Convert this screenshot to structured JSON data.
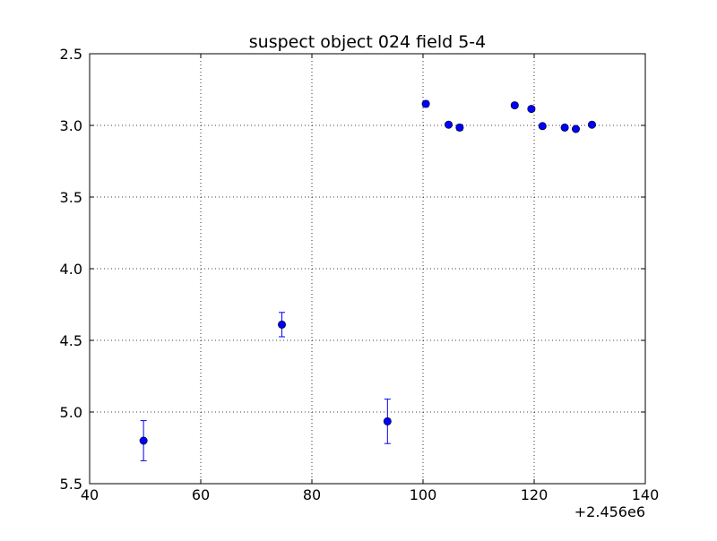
{
  "chart_data": {
    "type": "scatter",
    "title": "suspect object 024 field 5-4",
    "xlabel": "",
    "ylabel": "",
    "x_offset_label": "+2.456e6",
    "xlim": [
      40,
      140
    ],
    "ylim": [
      5.5,
      2.5
    ],
    "y_inverted": true,
    "grid": true,
    "x_ticks": [
      40,
      60,
      80,
      100,
      120,
      140
    ],
    "x_tick_labels": [
      "40",
      "60",
      "80",
      "100",
      "120",
      "140"
    ],
    "y_ticks": [
      2.5,
      3.0,
      3.5,
      4.0,
      4.5,
      5.0,
      5.5
    ],
    "y_tick_labels": [
      "2.5",
      "3.0",
      "3.5",
      "4.0",
      "4.5",
      "5.0",
      "5.5"
    ],
    "colors": {
      "marker": "#0000ff",
      "grid": "#000000",
      "axes": "#000000"
    },
    "series": [
      {
        "points": [
          {
            "x": 49.7,
            "y": 5.2,
            "err": 0.14
          },
          {
            "x": 74.6,
            "y": 4.39,
            "err": 0.085
          },
          {
            "x": 93.6,
            "y": 5.065,
            "err": 0.155
          },
          {
            "x": 100.5,
            "y": 2.85,
            "err": 0.02
          },
          {
            "x": 104.6,
            "y": 2.995,
            "err": 0.015
          },
          {
            "x": 106.6,
            "y": 3.015,
            "err": 0.02
          },
          {
            "x": 116.5,
            "y": 2.86,
            "err": 0.015
          },
          {
            "x": 119.5,
            "y": 2.885,
            "err": 0.015
          },
          {
            "x": 121.5,
            "y": 3.005,
            "err": 0.015
          },
          {
            "x": 125.5,
            "y": 3.015,
            "err": 0.015
          },
          {
            "x": 127.5,
            "y": 3.025,
            "err": 0.015
          },
          {
            "x": 130.4,
            "y": 2.995,
            "err": 0.015
          }
        ]
      }
    ]
  }
}
